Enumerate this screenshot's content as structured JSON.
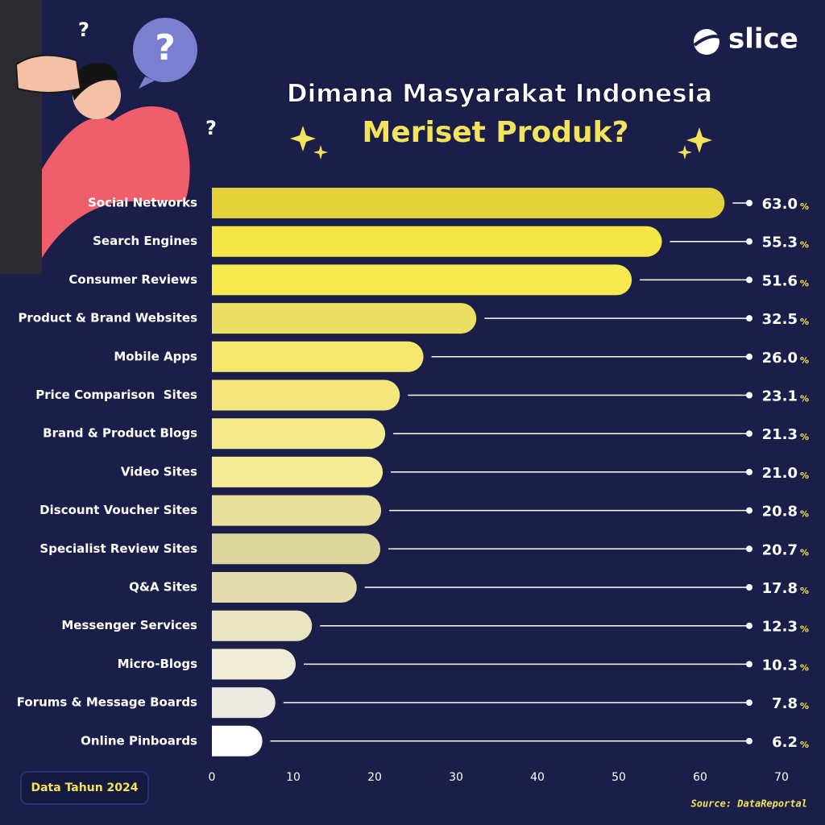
{
  "chart_data": {
    "type": "bar",
    "orientation": "horizontal",
    "brand": "slice",
    "title": "Dimana Masyarakat Indonesia",
    "subtitle": "Meriset Produk?",
    "annotations": [
      "?",
      "?",
      "?"
    ],
    "categories": [
      "Social Networks",
      "Search Engines",
      "Consumer Reviews",
      "Product & Brand Websites",
      "Mobile Apps",
      "Price Comparison  Sites",
      "Brand & Product Blogs",
      "Video Sites",
      "Discount Voucher Sites",
      "Specialist Review Sites",
      "Q&A Sites",
      "Messenger Services",
      "Micro-Blogs",
      "Forums & Message Boards",
      "Online Pinboards"
    ],
    "values": [
      63.0,
      55.3,
      51.6,
      32.5,
      26.0,
      23.1,
      21.3,
      21.0,
      20.8,
      20.7,
      17.8,
      12.3,
      10.3,
      7.8,
      6.2
    ],
    "value_labels": [
      "63.0",
      "55.3",
      "51.6",
      "32.5",
      "26.0",
      "23.1",
      "21.3",
      "21.0",
      "20.8",
      "20.7",
      "17.8",
      "12.3",
      "10.3",
      "7.8",
      "6.2"
    ],
    "value_suffix": "%",
    "colors": [
      "#e3d23a",
      "#f5e64a",
      "#f7ea50",
      "#ece064",
      "#f4e76e",
      "#f3e67c",
      "#f5ea8c",
      "#f6ec96",
      "#e8e09a",
      "#ddd69c",
      "#e2dcae",
      "#e8e4c2",
      "#efecd8",
      "#ebe9e0",
      "#ffffff"
    ],
    "xlim": [
      0,
      70
    ],
    "xticks": [
      0,
      10,
      20,
      30,
      40,
      50,
      60,
      70
    ],
    "grid": false,
    "footnote": "Data Tahun 2024",
    "source": "Source: DataReportal"
  }
}
